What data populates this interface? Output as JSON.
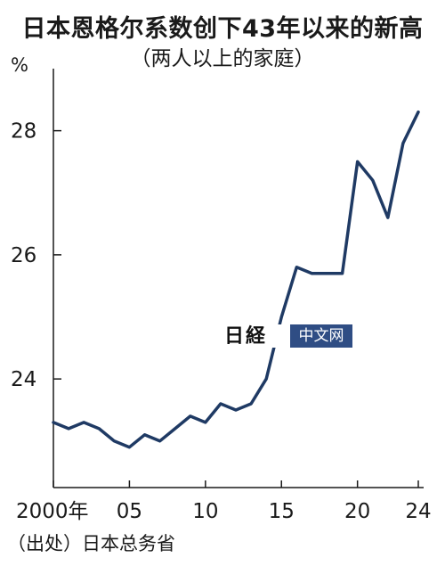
{
  "header": {
    "title": "日本恩格尔系数创下43年以来的新高",
    "subtitle": "（两人以上的家庭）"
  },
  "source_note": "（出处）日本总务省",
  "watermark": {
    "logo_text": "日経",
    "badge_text": "中文网"
  },
  "colors": {
    "line": "#1f3a64",
    "axis": "#1a1a1a"
  },
  "chart_data": {
    "type": "line",
    "title": "日本恩格尔系数创下43年以来的新高",
    "subtitle": "（两人以上的家庭）",
    "y_unit": "%",
    "ylim": [
      22.25,
      29.0
    ],
    "yticks": [
      24,
      26,
      28
    ],
    "xlim": [
      2000,
      2024
    ],
    "xticks": [
      {
        "value": 2000,
        "label": "2000年"
      },
      {
        "value": 2005,
        "label": "05"
      },
      {
        "value": 2010,
        "label": "10"
      },
      {
        "value": 2015,
        "label": "15"
      },
      {
        "value": 2020,
        "label": "20"
      },
      {
        "value": 2024,
        "label": "24"
      }
    ],
    "grid": false,
    "x": [
      2000,
      2001,
      2002,
      2003,
      2004,
      2005,
      2006,
      2007,
      2008,
      2009,
      2010,
      2011,
      2012,
      2013,
      2014,
      2015,
      2016,
      2017,
      2018,
      2019,
      2020,
      2021,
      2022,
      2023,
      2024
    ],
    "values": [
      23.3,
      23.2,
      23.3,
      23.2,
      23.0,
      22.9,
      23.1,
      23.0,
      23.2,
      23.4,
      23.3,
      23.6,
      23.5,
      23.6,
      24.0,
      25.0,
      25.8,
      25.7,
      25.7,
      25.7,
      27.5,
      27.2,
      26.6,
      27.8,
      28.3
    ],
    "source": "（出处）日本总务省"
  }
}
